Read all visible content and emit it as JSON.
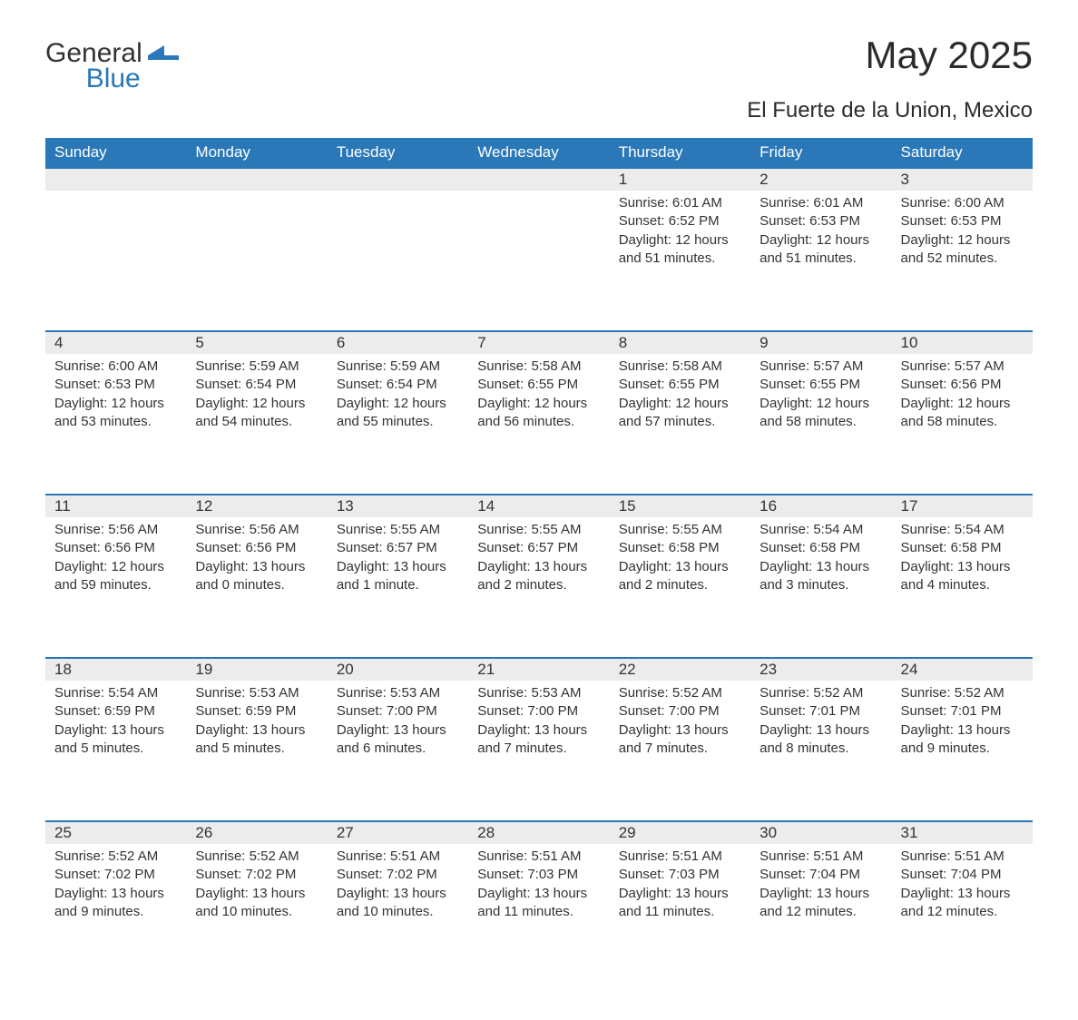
{
  "logo": {
    "word1": "General",
    "word2": "Blue"
  },
  "title": "May 2025",
  "subtitle": "El Fuerte de la Union, Mexico",
  "colors": {
    "header_bg": "#2a78b8",
    "header_text": "#ffffff",
    "daynum_bg": "#ececec",
    "border_top": "#2a78b8",
    "text": "#333333",
    "page_bg": "#ffffff"
  },
  "dayNames": [
    "Sunday",
    "Monday",
    "Tuesday",
    "Wednesday",
    "Thursday",
    "Friday",
    "Saturday"
  ],
  "weeks": [
    [
      null,
      null,
      null,
      null,
      {
        "n": "1",
        "sunrise": "6:01 AM",
        "sunset": "6:52 PM",
        "daylight": "12 hours and 51 minutes."
      },
      {
        "n": "2",
        "sunrise": "6:01 AM",
        "sunset": "6:53 PM",
        "daylight": "12 hours and 51 minutes."
      },
      {
        "n": "3",
        "sunrise": "6:00 AM",
        "sunset": "6:53 PM",
        "daylight": "12 hours and 52 minutes."
      }
    ],
    [
      {
        "n": "4",
        "sunrise": "6:00 AM",
        "sunset": "6:53 PM",
        "daylight": "12 hours and 53 minutes."
      },
      {
        "n": "5",
        "sunrise": "5:59 AM",
        "sunset": "6:54 PM",
        "daylight": "12 hours and 54 minutes."
      },
      {
        "n": "6",
        "sunrise": "5:59 AM",
        "sunset": "6:54 PM",
        "daylight": "12 hours and 55 minutes."
      },
      {
        "n": "7",
        "sunrise": "5:58 AM",
        "sunset": "6:55 PM",
        "daylight": "12 hours and 56 minutes."
      },
      {
        "n": "8",
        "sunrise": "5:58 AM",
        "sunset": "6:55 PM",
        "daylight": "12 hours and 57 minutes."
      },
      {
        "n": "9",
        "sunrise": "5:57 AM",
        "sunset": "6:55 PM",
        "daylight": "12 hours and 58 minutes."
      },
      {
        "n": "10",
        "sunrise": "5:57 AM",
        "sunset": "6:56 PM",
        "daylight": "12 hours and 58 minutes."
      }
    ],
    [
      {
        "n": "11",
        "sunrise": "5:56 AM",
        "sunset": "6:56 PM",
        "daylight": "12 hours and 59 minutes."
      },
      {
        "n": "12",
        "sunrise": "5:56 AM",
        "sunset": "6:56 PM",
        "daylight": "13 hours and 0 minutes."
      },
      {
        "n": "13",
        "sunrise": "5:55 AM",
        "sunset": "6:57 PM",
        "daylight": "13 hours and 1 minute."
      },
      {
        "n": "14",
        "sunrise": "5:55 AM",
        "sunset": "6:57 PM",
        "daylight": "13 hours and 2 minutes."
      },
      {
        "n": "15",
        "sunrise": "5:55 AM",
        "sunset": "6:58 PM",
        "daylight": "13 hours and 2 minutes."
      },
      {
        "n": "16",
        "sunrise": "5:54 AM",
        "sunset": "6:58 PM",
        "daylight": "13 hours and 3 minutes."
      },
      {
        "n": "17",
        "sunrise": "5:54 AM",
        "sunset": "6:58 PM",
        "daylight": "13 hours and 4 minutes."
      }
    ],
    [
      {
        "n": "18",
        "sunrise": "5:54 AM",
        "sunset": "6:59 PM",
        "daylight": "13 hours and 5 minutes."
      },
      {
        "n": "19",
        "sunrise": "5:53 AM",
        "sunset": "6:59 PM",
        "daylight": "13 hours and 5 minutes."
      },
      {
        "n": "20",
        "sunrise": "5:53 AM",
        "sunset": "7:00 PM",
        "daylight": "13 hours and 6 minutes."
      },
      {
        "n": "21",
        "sunrise": "5:53 AM",
        "sunset": "7:00 PM",
        "daylight": "13 hours and 7 minutes."
      },
      {
        "n": "22",
        "sunrise": "5:52 AM",
        "sunset": "7:00 PM",
        "daylight": "13 hours and 7 minutes."
      },
      {
        "n": "23",
        "sunrise": "5:52 AM",
        "sunset": "7:01 PM",
        "daylight": "13 hours and 8 minutes."
      },
      {
        "n": "24",
        "sunrise": "5:52 AM",
        "sunset": "7:01 PM",
        "daylight": "13 hours and 9 minutes."
      }
    ],
    [
      {
        "n": "25",
        "sunrise": "5:52 AM",
        "sunset": "7:02 PM",
        "daylight": "13 hours and 9 minutes."
      },
      {
        "n": "26",
        "sunrise": "5:52 AM",
        "sunset": "7:02 PM",
        "daylight": "13 hours and 10 minutes."
      },
      {
        "n": "27",
        "sunrise": "5:51 AM",
        "sunset": "7:02 PM",
        "daylight": "13 hours and 10 minutes."
      },
      {
        "n": "28",
        "sunrise": "5:51 AM",
        "sunset": "7:03 PM",
        "daylight": "13 hours and 11 minutes."
      },
      {
        "n": "29",
        "sunrise": "5:51 AM",
        "sunset": "7:03 PM",
        "daylight": "13 hours and 11 minutes."
      },
      {
        "n": "30",
        "sunrise": "5:51 AM",
        "sunset": "7:04 PM",
        "daylight": "13 hours and 12 minutes."
      },
      {
        "n": "31",
        "sunrise": "5:51 AM",
        "sunset": "7:04 PM",
        "daylight": "13 hours and 12 minutes."
      }
    ]
  ],
  "labels": {
    "sunrise": "Sunrise: ",
    "sunset": "Sunset: ",
    "daylight": "Daylight: "
  }
}
